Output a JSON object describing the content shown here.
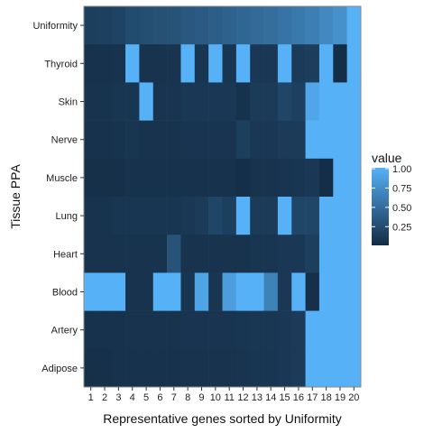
{
  "chart_data": {
    "type": "heatmap",
    "title": "",
    "xlabel": "Representative genes sorted by Uniformity",
    "ylabel": "Tissue PPA",
    "x": [
      "1",
      "2",
      "3",
      "4",
      "5",
      "6",
      "7",
      "8",
      "9",
      "10",
      "11",
      "12",
      "13",
      "14",
      "15",
      "16",
      "17",
      "18",
      "19",
      "20"
    ],
    "y": [
      "Uniformity",
      "Thyroid",
      "Skin",
      "Nerve",
      "Muscle",
      "Lung",
      "Heart",
      "Blood",
      "Artery",
      "Adipose"
    ],
    "values": [
      [
        0.15,
        0.16,
        0.18,
        0.24,
        0.26,
        0.28,
        0.3,
        0.33,
        0.36,
        0.38,
        0.41,
        0.44,
        0.47,
        0.5,
        0.54,
        0.58,
        0.63,
        0.7,
        0.76,
        1.0
      ],
      [
        0.05,
        0.05,
        0.06,
        1.0,
        0.06,
        0.06,
        0.07,
        1.0,
        0.08,
        1.0,
        0.08,
        1.0,
        0.1,
        0.1,
        1.0,
        0.12,
        0.14,
        1.0,
        0.02,
        1.0
      ],
      [
        0.06,
        0.06,
        0.08,
        0.08,
        1.0,
        0.07,
        0.07,
        0.1,
        0.1,
        0.1,
        0.1,
        0.05,
        0.12,
        0.12,
        0.2,
        0.16,
        0.92,
        1.0,
        1.0,
        1.0
      ],
      [
        0.05,
        0.05,
        0.06,
        0.08,
        0.06,
        0.06,
        0.06,
        0.07,
        0.07,
        0.07,
        0.07,
        0.15,
        0.1,
        0.1,
        0.12,
        0.12,
        1.0,
        1.0,
        1.0,
        1.0
      ],
      [
        0.04,
        0.04,
        0.04,
        0.05,
        0.05,
        0.05,
        0.05,
        0.05,
        0.05,
        0.05,
        0.05,
        0.03,
        0.06,
        0.06,
        0.07,
        0.08,
        0.1,
        0.02,
        1.0,
        1.0
      ],
      [
        0.06,
        0.06,
        0.08,
        0.08,
        0.08,
        0.08,
        0.08,
        0.1,
        0.12,
        0.2,
        0.15,
        1.0,
        0.12,
        0.12,
        1.0,
        0.2,
        0.2,
        1.0,
        1.0,
        1.0
      ],
      [
        0.06,
        0.06,
        0.06,
        0.06,
        0.06,
        0.06,
        0.3,
        0.06,
        0.06,
        0.06,
        0.06,
        0.06,
        0.08,
        0.08,
        0.1,
        0.1,
        0.15,
        1.0,
        1.0,
        1.0
      ],
      [
        1.0,
        1.0,
        1.0,
        0.06,
        0.06,
        1.0,
        1.0,
        0.08,
        0.9,
        0.08,
        0.85,
        1.0,
        1.0,
        0.65,
        0.1,
        1.0,
        0.04,
        1.0,
        1.0,
        1.0
      ],
      [
        0.05,
        0.05,
        0.05,
        0.06,
        0.06,
        0.06,
        0.06,
        0.07,
        0.07,
        0.07,
        0.07,
        0.08,
        0.09,
        0.09,
        0.1,
        0.12,
        1.0,
        1.0,
        1.0,
        1.0
      ],
      [
        0.04,
        0.04,
        0.05,
        0.05,
        0.05,
        0.05,
        0.05,
        0.06,
        0.06,
        0.06,
        0.06,
        0.07,
        0.08,
        0.08,
        0.1,
        0.12,
        1.0,
        1.0,
        1.0,
        1.0
      ]
    ],
    "color_range": [
      0.0,
      1.0
    ],
    "color_low": "#132B43",
    "color_high": "#56B1F7",
    "panel_border_color": "#888888",
    "legend": {
      "title": "value",
      "ticks": [
        {
          "value": 0.25,
          "label": "0.25"
        },
        {
          "value": 0.5,
          "label": "0.50"
        },
        {
          "value": 0.75,
          "label": "0.75"
        },
        {
          "value": 1.0,
          "label": "1.00"
        }
      ],
      "placement": "right"
    }
  }
}
